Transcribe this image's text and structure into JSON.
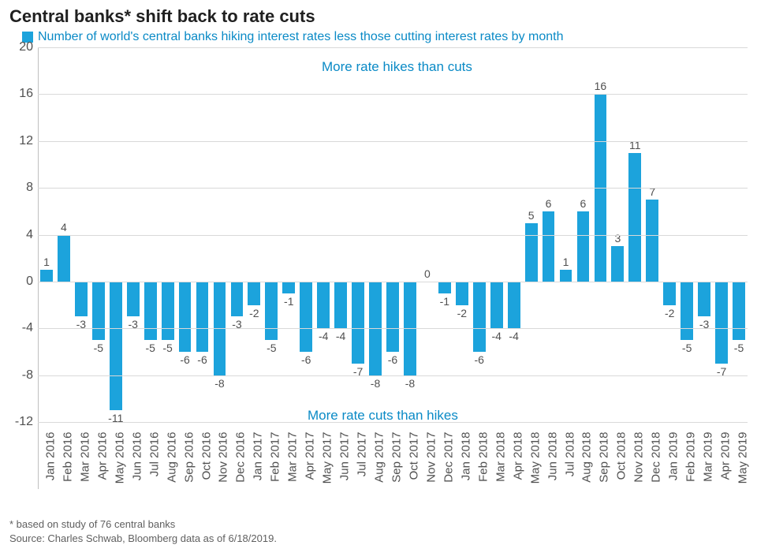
{
  "title": "Central banks* shift back to rate cuts",
  "legend_label": "Number of world's central banks hiking interest rates less those cutting interest rates by month",
  "annotation_top": "More rate hikes than cuts",
  "annotation_bottom": "More rate cuts than hikes",
  "footnote_1": "* based on study of 76 central banks",
  "footnote_2": "Source: Charles Schwab, Bloomberg data as of 6/18/2019.",
  "chart": {
    "type": "bar",
    "bar_color": "#1ca3dc",
    "background_color": "#ffffff",
    "grid_color": "#d9d9d9",
    "text_color": "#505050",
    "accent_text_color": "#0a8ac6",
    "title_fontsize": 22,
    "legend_fontsize": 16,
    "label_fontsize": 14,
    "tick_fontsize": 15,
    "ylim": [
      -12,
      20
    ],
    "ytick_step": 4,
    "yticks": [
      -12,
      -8,
      -4,
      0,
      4,
      8,
      12,
      16,
      20
    ],
    "bar_width": 0.72,
    "categories": [
      "Jan 2016",
      "Feb 2016",
      "Mar 2016",
      "Apr 2016",
      "May 2016",
      "Jun 2016",
      "Jul 2016",
      "Aug 2016",
      "Sep 2016",
      "Oct 2016",
      "Nov 2016",
      "Dec 2016",
      "Jan 2017",
      "Feb 2017",
      "Mar 2017",
      "Apr 2017",
      "May 2017",
      "Jun 2017",
      "Jul 2017",
      "Aug 2017",
      "Sep 2017",
      "Oct 2017",
      "Nov 2017",
      "Dec 2017",
      "Jan 2018",
      "Feb 2018",
      "Mar 2018",
      "Apr 2018",
      "May 2018",
      "Jun 2018",
      "Jul 2018",
      "Aug 2018",
      "Sep 2018",
      "Oct 2018",
      "Nov 2018",
      "Dec 2018",
      "Jan 2019",
      "Feb 2019",
      "Mar 2019",
      "Apr 2019",
      "May 2019"
    ],
    "values": [
      1,
      4,
      -3,
      -5,
      -11,
      -3,
      -5,
      -5,
      -6,
      -6,
      -8,
      -3,
      -2,
      -5,
      -1,
      -6,
      -4,
      -4,
      -7,
      -8,
      -6,
      -8,
      0,
      -1,
      -2,
      -6,
      -4,
      -4,
      5,
      6,
      1,
      6,
      16,
      3,
      11,
      7,
      -2,
      -5,
      -3,
      -7,
      -5
    ]
  }
}
